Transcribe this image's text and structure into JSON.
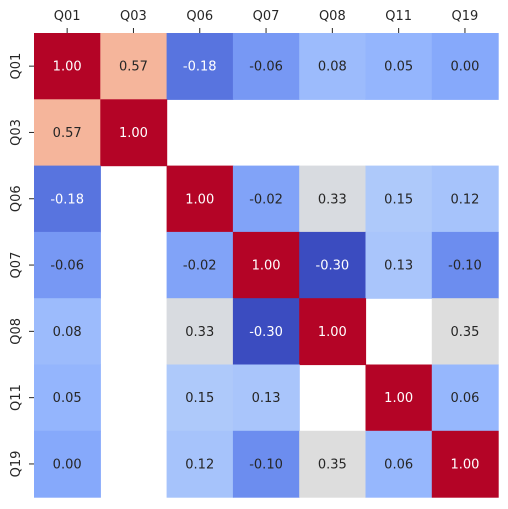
{
  "chart_data": {
    "type": "heatmap",
    "title": "",
    "xlabel": "",
    "ylabel": "",
    "x_ticks_position": "top",
    "colorbar": false,
    "colormap": "coolwarm",
    "color_range": [
      -0.3,
      1.0
    ],
    "labels": [
      "Q01",
      "Q03",
      "Q06",
      "Q07",
      "Q08",
      "Q11",
      "Q19"
    ],
    "matrix": [
      [
        1.0,
        0.57,
        -0.18,
        -0.06,
        0.08,
        0.05,
        0.0
      ],
      [
        0.57,
        1.0,
        null,
        null,
        null,
        null,
        null
      ],
      [
        -0.18,
        null,
        1.0,
        -0.02,
        0.33,
        0.15,
        0.12
      ],
      [
        -0.06,
        null,
        -0.02,
        1.0,
        -0.3,
        0.13,
        -0.1
      ],
      [
        0.08,
        null,
        0.33,
        -0.3,
        1.0,
        null,
        0.35
      ],
      [
        0.05,
        null,
        0.15,
        0.13,
        null,
        1.0,
        0.06
      ],
      [
        0.0,
        null,
        0.12,
        -0.1,
        0.35,
        0.06,
        1.0
      ]
    ],
    "annotation_format": "0.00"
  }
}
